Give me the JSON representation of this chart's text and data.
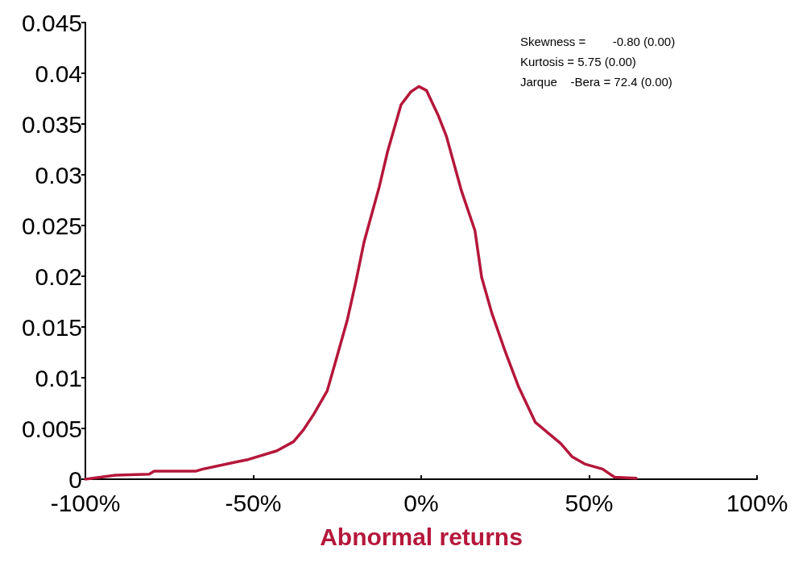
{
  "chart_data": {
    "type": "line",
    "xlabel": "Abnormal returns",
    "annotations": [
      "Skewness =        -0.80 (0.00)",
      "Kurtosis = 5.75 (0.00)",
      "Jarque    -Bera = 72.4 (0.00)"
    ],
    "x": [
      -100,
      -91,
      -81,
      -79.5,
      -67,
      -65,
      -55,
      -52,
      -43,
      -38,
      -35,
      -32,
      -28,
      -25.4,
      -22,
      -19.5,
      -17,
      -12.5,
      -10,
      -6,
      -3,
      -0.7,
      1.6,
      5,
      7.5,
      12,
      16,
      18,
      21,
      25,
      29,
      34,
      41.6,
      45,
      48.7,
      54,
      57.6,
      64
    ],
    "series": [
      {
        "color": "#b5173b",
        "values": [
          0,
          0.0004,
          0.0005,
          0.0008,
          0.0008,
          0.001,
          0.0017,
          0.0019,
          0.0028,
          0.0037,
          0.0049,
          0.0064,
          0.0087,
          0.0117,
          0.0157,
          0.0194,
          0.0234,
          0.0288,
          0.0323,
          0.0369,
          0.0382,
          0.0387,
          0.0383,
          0.0359,
          0.0338,
          0.0284,
          0.0245,
          0.0199,
          0.0164,
          0.0126,
          0.0091,
          0.0056,
          0.0035,
          0.0022,
          0.0015,
          0.001,
          0.0002,
          0.0001
        ]
      }
    ],
    "xlim": [
      -100,
      100
    ],
    "xticks": [
      {
        "value": -100,
        "label": "-100%"
      },
      {
        "value": -50,
        "label": "-50%"
      },
      {
        "value": 0,
        "label": "0%"
      },
      {
        "value": 50,
        "label": "50%"
      },
      {
        "value": 100,
        "label": "100%"
      }
    ],
    "ylim": [
      0,
      0.045
    ],
    "yticks": [
      0,
      0.005,
      0.01,
      0.015,
      0.02,
      0.025,
      0.03,
      0.035,
      0.04,
      0.045
    ],
    "grid": false,
    "marker": "none",
    "line_style": "solid"
  }
}
